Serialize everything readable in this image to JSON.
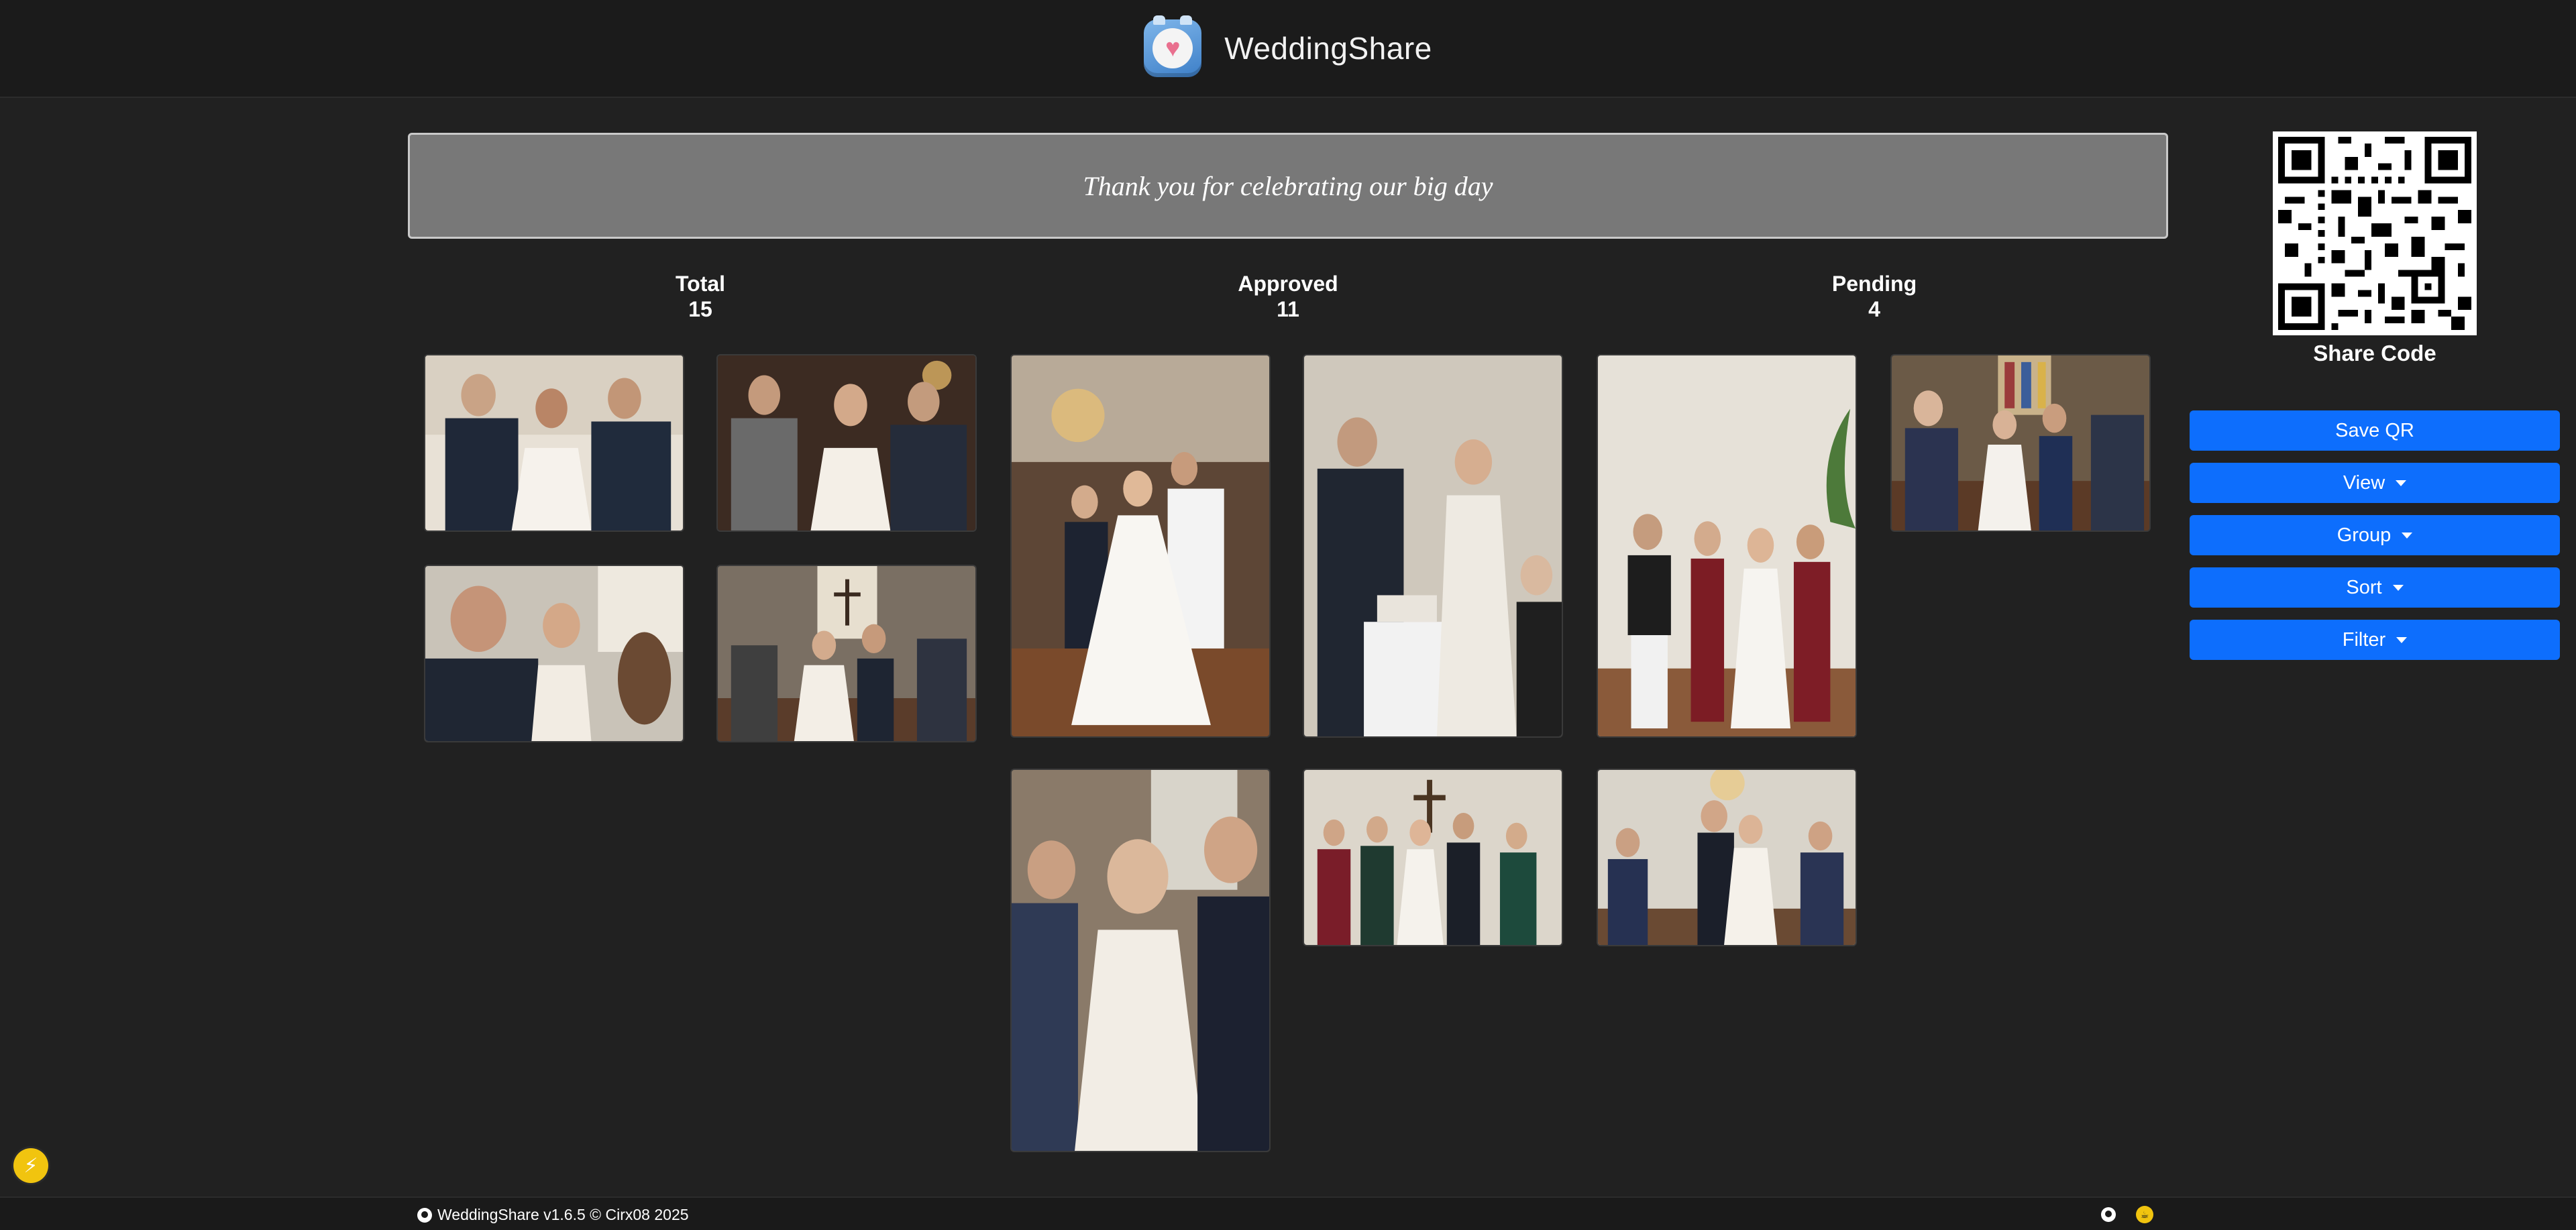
{
  "app": {
    "title": "WeddingShare",
    "logo_icon": "heart-camera-icon"
  },
  "banner": {
    "text": "Thank you for celebrating our big day"
  },
  "stats": {
    "total": {
      "label": "Total",
      "value": "15"
    },
    "approved": {
      "label": "Approved",
      "value": "11"
    },
    "pending": {
      "label": "Pending",
      "value": "4"
    }
  },
  "gallery": {
    "photos": [
      {
        "id": 1,
        "description": "Groom and groomsmen cheering with bride"
      },
      {
        "id": 2,
        "description": "Guests toasting with the bride"
      },
      {
        "id": 3,
        "description": "Couple smiling with guests"
      },
      {
        "id": 4,
        "description": "Guests celebrating couple in aisle"
      },
      {
        "id": 5,
        "description": "Couple dancing in ballroom"
      },
      {
        "id": 6,
        "description": "Cake cutting"
      },
      {
        "id": 7,
        "description": "Bridal party standing together"
      },
      {
        "id": 8,
        "description": "Couple walking down church aisle"
      },
      {
        "id": 9,
        "description": "Bride holding a champagne glass"
      },
      {
        "id": 10,
        "description": "Couple with bridesmaids at altar"
      },
      {
        "id": 11,
        "description": "Couple exiting with guests cheering"
      }
    ]
  },
  "share": {
    "label": "Share Code",
    "qr_icon": "qr-code-icon"
  },
  "actions": {
    "save_qr": "Save QR",
    "view": "View",
    "group": "Group",
    "sort": "Sort",
    "filter": "Filter"
  },
  "footer": {
    "text": "WeddingShare v1.6.5 © Cirx08 2025",
    "github_icon": "github-icon",
    "coffee_icon": "buy-me-a-coffee-icon"
  },
  "colors": {
    "background": "#212121",
    "header": "#1b1b1b",
    "banner": "#787878",
    "accent": "#0d6efd",
    "bolt": "#f1c40f"
  }
}
